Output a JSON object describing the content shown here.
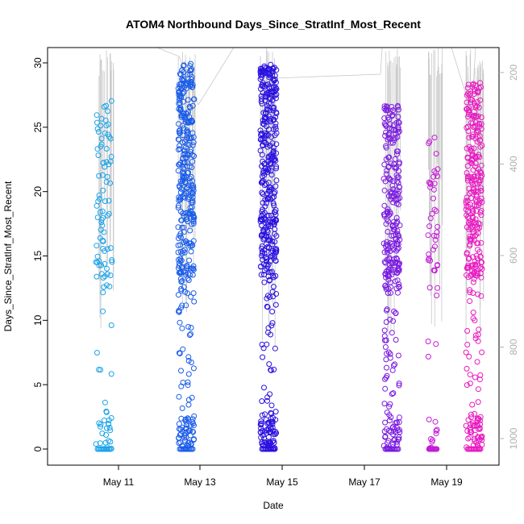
{
  "chart_data": {
    "type": "scatter",
    "title": "ATOM4 Northbound Days_Since_StratInf_Most_Recent",
    "xlabel": "Date",
    "ylabel": "Days_Since_StratInf_Most_Recent",
    "x_ticks": [
      "May 11",
      "May 13",
      "May 15",
      "May 17",
      "May 19"
    ],
    "y_ticks": [
      "0",
      "5",
      "10",
      "15",
      "20",
      "25",
      "30"
    ],
    "ylim": [
      0,
      30
    ],
    "secondary_axis": {
      "side": "right",
      "reversed": true,
      "ticks": [
        "200",
        "400",
        "600",
        "800",
        "1000"
      ],
      "range": [
        140,
        1050
      ],
      "color": "#b0b0b0"
    },
    "grid": false,
    "point_style": "open-circle",
    "color_scale": "cyan-to-blue-to-magenta over time",
    "series": [
      {
        "date": "2016-05-10",
        "color": "#1aa3e8",
        "y_range": [
          0,
          27.2
        ],
        "zero_cluster": true
      },
      {
        "date": "2016-05-12",
        "color": "#1a5ce8",
        "y_range": [
          0,
          30
        ],
        "zero_cluster": true
      },
      {
        "date": "2016-05-14",
        "color": "#2a10e0",
        "y_range": [
          0,
          30
        ],
        "zero_cluster": true
      },
      {
        "date": "2016-05-17",
        "color": "#7a1ae0",
        "y_range": [
          0,
          26.7
        ],
        "zero_cluster": true
      },
      {
        "date": "2016-05-18",
        "color": "#c41ad8",
        "y_range": [
          0,
          25.5
        ],
        "zero_cluster": true
      },
      {
        "date": "2016-05-19",
        "color": "#e81ac0",
        "y_range": [
          0,
          28.7
        ],
        "zero_cluster": true
      }
    ]
  }
}
